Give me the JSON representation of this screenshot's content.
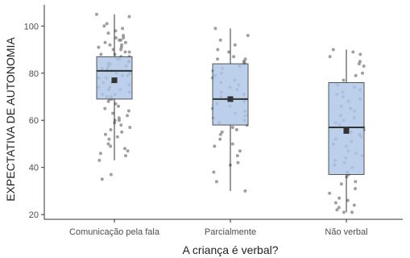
{
  "chart_data": {
    "type": "boxplot",
    "xlabel": "A criança é verbal?",
    "ylabel": "EXPECTATIVA DE AUTONOMIA",
    "ylim": [
      18,
      109
    ],
    "yticks": [
      20,
      40,
      60,
      80,
      100
    ],
    "grid": false,
    "colors": {
      "box_fill": "#adc6e6",
      "box_stroke": "#333333",
      "point": "#808080",
      "mean": "#333333"
    },
    "categories": [
      "Comunicação pela fala",
      "Parcialmente",
      "Não verbal"
    ],
    "boxes": [
      {
        "category": "Comunicação pela fala",
        "min": 43,
        "q1": 69,
        "median": 81,
        "q3": 87,
        "max": 105,
        "mean": 77
      },
      {
        "category": "Parcialmente",
        "min": 30,
        "q1": 58,
        "median": 69,
        "q3": 84,
        "max": 99,
        "mean": 69
      },
      {
        "category": "Não verbal",
        "min": 21,
        "q1": 37,
        "median": 57,
        "q3": 76,
        "max": 90,
        "mean": 55.5
      }
    ],
    "points": [
      [
        105,
        104,
        101,
        100,
        99,
        98,
        97,
        96,
        95,
        95,
        94,
        94,
        93,
        93,
        92,
        92,
        91,
        91,
        90,
        90,
        89,
        89,
        88,
        88,
        87,
        87,
        86,
        86,
        85,
        85,
        84,
        84,
        83,
        83,
        82,
        82,
        81,
        81,
        80,
        80,
        79,
        79,
        78,
        78,
        77,
        77,
        76,
        76,
        75,
        74,
        74,
        73,
        73,
        72,
        71,
        71,
        70,
        70,
        69,
        69,
        68,
        67,
        66,
        65,
        64,
        63,
        62,
        61,
        60,
        60,
        59,
        58,
        57,
        56,
        55,
        54,
        53,
        52,
        50,
        49,
        48,
        47,
        46,
        45,
        43,
        37,
        35
      ],
      [
        99,
        96,
        94,
        92,
        90,
        89,
        87,
        86,
        86,
        85,
        85,
        84,
        84,
        83,
        82,
        81,
        80,
        79,
        78,
        77,
        76,
        75,
        74,
        73,
        72,
        71,
        70,
        69,
        68,
        67,
        66,
        65,
        64,
        63,
        62,
        61,
        60,
        59,
        58,
        57,
        56,
        55,
        54,
        52,
        50,
        49,
        47,
        45,
        42,
        41,
        38,
        34,
        30
      ],
      [
        90,
        89,
        88,
        87,
        85,
        84,
        83,
        80,
        79,
        77,
        75,
        74,
        73,
        72,
        71,
        70,
        69,
        68,
        66,
        65,
        64,
        62,
        61,
        60,
        59,
        58,
        57,
        56,
        55,
        54,
        53,
        52,
        51,
        50,
        49,
        47,
        46,
        45,
        44,
        43,
        42,
        41,
        40,
        38,
        37,
        36,
        34,
        33,
        31,
        29,
        27,
        26,
        25,
        24,
        23,
        22,
        21,
        21
      ]
    ]
  }
}
